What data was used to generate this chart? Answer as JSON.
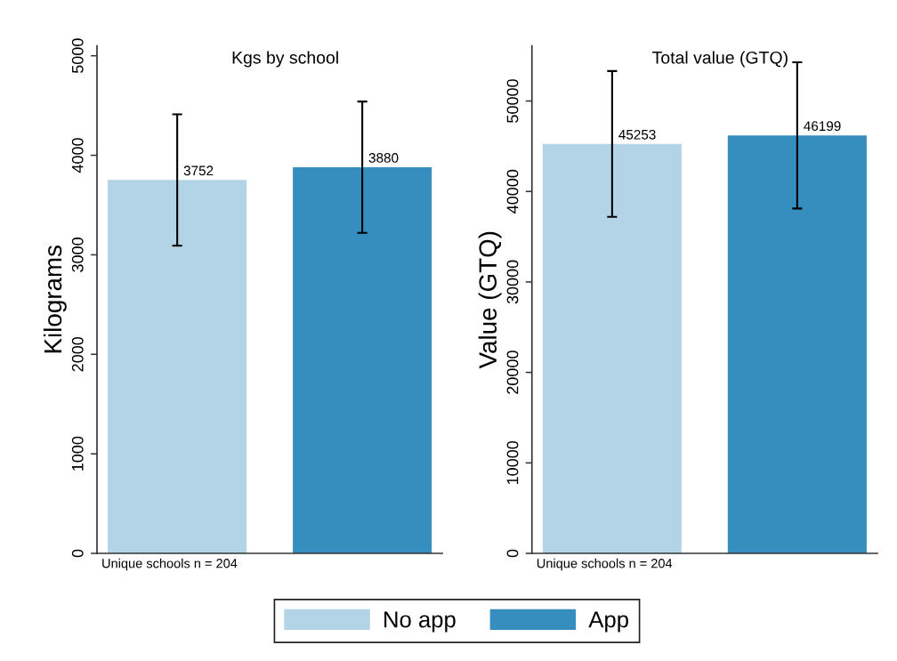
{
  "chart_data": [
    {
      "type": "bar",
      "title": "Kgs by school",
      "ylabel": "Kilograms",
      "categories": [
        null
      ],
      "series": [
        {
          "name": "No app",
          "color": "#b3d3e6",
          "values": [
            3752
          ],
          "errors": [
            660
          ]
        },
        {
          "name": "App",
          "color": "#358ebd",
          "values": [
            3880
          ],
          "errors": [
            660
          ]
        }
      ],
      "ylim": [
        0,
        5100
      ],
      "yticks": [
        0,
        1000,
        2000,
        3000,
        4000,
        5000
      ],
      "data_labels": true,
      "legend": "bottom",
      "annotations": [
        "Unique schools n = 204"
      ]
    },
    {
      "type": "bar",
      "title": "Total value (GTQ)",
      "ylabel": "Value (GTQ)",
      "categories": [
        null
      ],
      "series": [
        {
          "name": "No app",
          "color": "#b3d3e6",
          "values": [
            45253
          ],
          "errors": [
            8060
          ]
        },
        {
          "name": "App",
          "color": "#358ebd",
          "values": [
            46199
          ],
          "errors": [
            8080
          ]
        }
      ],
      "ylim": [
        0,
        56100
      ],
      "yticks": [
        0,
        10000,
        20000,
        30000,
        40000,
        50000
      ],
      "data_labels": true,
      "legend": "bottom",
      "annotations": [
        "Unique schools n = 204"
      ]
    }
  ]
}
